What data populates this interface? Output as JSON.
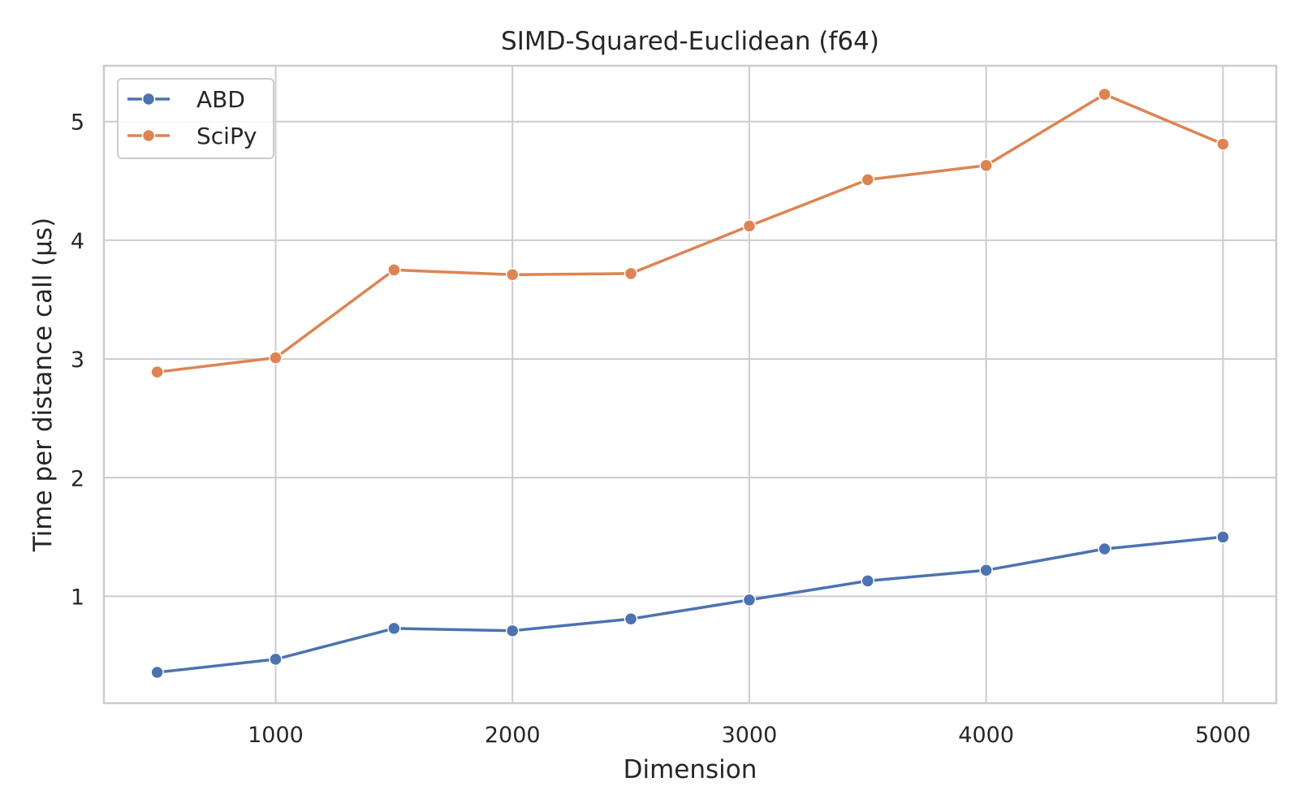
{
  "chart_data": {
    "type": "line",
    "title": "SIMD-Squared-Euclidean (f64)",
    "xlabel": "Dimension",
    "ylabel": "Time per distance call (µs)",
    "x": [
      500,
      1000,
      1500,
      2000,
      2500,
      3000,
      3500,
      4000,
      4500,
      5000
    ],
    "xlim": [
      275,
      5225
    ],
    "ylim": [
      0.1,
      5.47
    ],
    "xticks": [
      1000,
      2000,
      3000,
      4000,
      5000
    ],
    "yticks": [
      1,
      2,
      3,
      4,
      5
    ],
    "grid": true,
    "legend_position": "top-left",
    "series": [
      {
        "name": "ABD",
        "color": "#4c72b0",
        "marker": "circle",
        "values": [
          0.36,
          0.47,
          0.73,
          0.71,
          0.81,
          0.97,
          1.13,
          1.22,
          1.4,
          1.5
        ]
      },
      {
        "name": "SciPy",
        "color": "#dd8452",
        "marker": "circle",
        "values": [
          2.89,
          3.01,
          3.75,
          3.71,
          3.72,
          4.12,
          4.51,
          4.63,
          5.23,
          4.81
        ]
      }
    ]
  }
}
